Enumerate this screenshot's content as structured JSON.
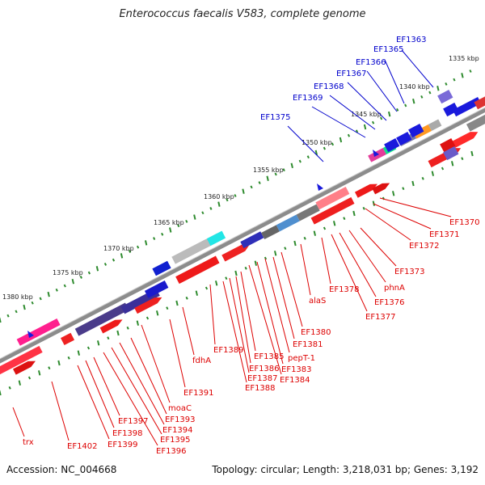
{
  "title": "Enterococcus faecalis V583, complete genome",
  "footer": {
    "accession": "Accession: NC_004668",
    "summary": "Topology: circular; Length: 3,218,031 bp; Genes: 3,192"
  },
  "colors": {
    "backbone": "#8c8c8c",
    "tick": "#2e8b2e",
    "forward_label": "#0000cc",
    "reverse_label": "#dd0000"
  },
  "kbp_labels": [
    "1335 kbp",
    "1340 kbp",
    "1345 kbp",
    "1350 kbp",
    "1355 kbp",
    "1360 kbp",
    "1365 kbp",
    "1370 kbp",
    "1375 kbp",
    "1380 kbp"
  ],
  "forward_genes": [
    "EF1363",
    "EF1365",
    "EF1366",
    "EF1367",
    "EF1368",
    "EF1369",
    "EF1375"
  ],
  "reverse_genes": [
    "EF1370",
    "EF1371",
    "EF1372",
    "EF1373",
    "phnA",
    "EF1376",
    "EF1377",
    "EF1378",
    "alaS",
    "EF1380",
    "EF1381",
    "pepT-1",
    "EF1383",
    "EF1384",
    "EF1385",
    "EF1386",
    "EF1387",
    "EF1388",
    "EF1389",
    "fdhA",
    "EF1391",
    "moaC",
    "EF1393",
    "EF1394",
    "EF1395",
    "EF1396",
    "EF1397",
    "EF1398",
    "EF1399",
    "EF1402",
    "trx"
  ]
}
